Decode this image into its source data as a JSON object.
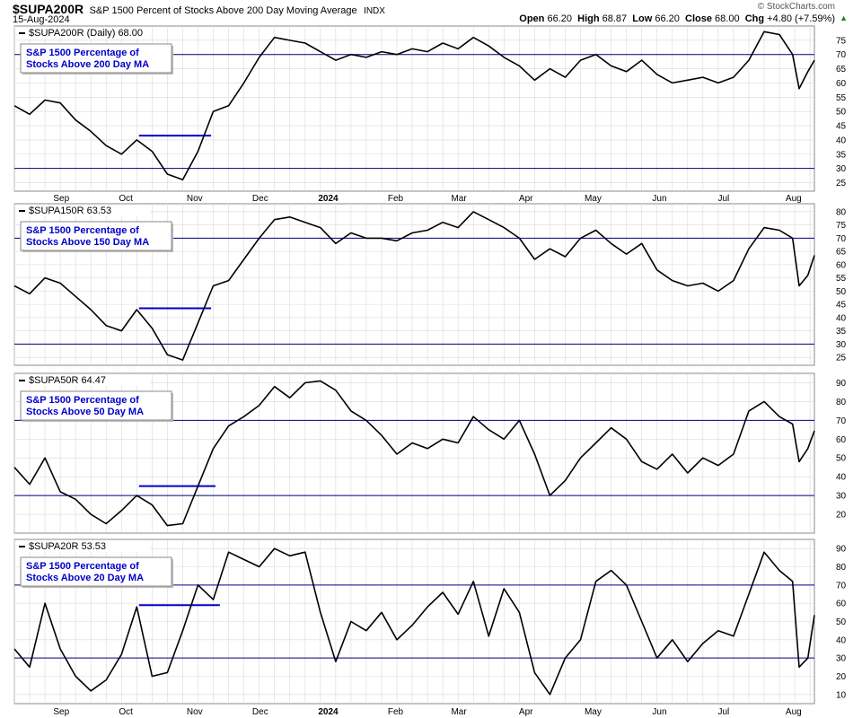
{
  "header": {
    "symbol": "$SUPA200R",
    "description": "S&P 1500 Percent of Stocks Above 200 Day Moving Average",
    "exchange": "INDX",
    "date": "15-Aug-2024",
    "open_label": "Open",
    "open": "66.20",
    "high_label": "High",
    "high": "68.87",
    "low_label": "Low",
    "low": "66.20",
    "close_label": "Close",
    "close": "68.00",
    "chg_label": "Chg",
    "chg": "+4.80 (+7.59%)",
    "up_arrow": "▲",
    "brand": "© StockCharts.com",
    "brand_icon": "copyright-icon"
  },
  "colors": {
    "price_line": "#000000",
    "ref_line": "#00007f",
    "box_text": "#0000cc",
    "grid": "#d9d9d9",
    "trend_line": "#0000cc"
  },
  "x_axis": {
    "labels": [
      "Sep",
      "Oct",
      "Nov",
      "Dec",
      "2024",
      "Feb",
      "Mar",
      "Apr",
      "May",
      "Jun",
      "Jul",
      "Aug"
    ],
    "bold_labels": [
      "2024"
    ],
    "start_date": "2023-08-15",
    "end_date": "2024-08-15"
  },
  "chart_data": [
    {
      "type": "line",
      "title": "$SUPA200R (Daily) 68.00",
      "annotation": [
        "S&P 1500 Percentage of",
        "Stocks Above 200 Day MA"
      ],
      "yticks": [
        25,
        30,
        35,
        40,
        45,
        50,
        55,
        60,
        65,
        70,
        75
      ],
      "ylim": [
        22,
        80
      ],
      "reference_lines": [
        30,
        70
      ],
      "trendline": {
        "y": 41.5,
        "x_start": "2023-10-11",
        "x_end": "2023-11-13"
      },
      "x": [
        "2023-08-15",
        "2023-08-22",
        "2023-08-29",
        "2023-09-05",
        "2023-09-12",
        "2023-09-19",
        "2023-09-26",
        "2023-10-03",
        "2023-10-10",
        "2023-10-17",
        "2023-10-24",
        "2023-10-31",
        "2023-11-07",
        "2023-11-14",
        "2023-11-21",
        "2023-11-28",
        "2023-12-05",
        "2023-12-12",
        "2023-12-19",
        "2023-12-26",
        "2024-01-02",
        "2024-01-09",
        "2024-01-16",
        "2024-01-23",
        "2024-01-30",
        "2024-02-06",
        "2024-02-13",
        "2024-02-20",
        "2024-02-27",
        "2024-03-05",
        "2024-03-12",
        "2024-03-19",
        "2024-03-26",
        "2024-04-02",
        "2024-04-09",
        "2024-04-16",
        "2024-04-23",
        "2024-04-30",
        "2024-05-07",
        "2024-05-14",
        "2024-05-21",
        "2024-05-28",
        "2024-06-04",
        "2024-06-11",
        "2024-06-18",
        "2024-06-25",
        "2024-07-02",
        "2024-07-09",
        "2024-07-16",
        "2024-07-23",
        "2024-07-30",
        "2024-08-05",
        "2024-08-08",
        "2024-08-12",
        "2024-08-15"
      ],
      "values": [
        52,
        49,
        54,
        53,
        47,
        43,
        38,
        35,
        40,
        36,
        28,
        26,
        36,
        50,
        52,
        60,
        69,
        76,
        75,
        74,
        71,
        68,
        70,
        69,
        71,
        70,
        72,
        71,
        74,
        72,
        76,
        73,
        69,
        66,
        61,
        65,
        62,
        68,
        70,
        66,
        64,
        68,
        63,
        60,
        61,
        62,
        60,
        62,
        68,
        78,
        77,
        70,
        58,
        64,
        68
      ]
    },
    {
      "type": "line",
      "title": "$SUPA150R 63.53",
      "annotation": [
        "S&P 1500 Percentage of",
        "Stocks Above 150 Day MA"
      ],
      "yticks": [
        25,
        30,
        35,
        40,
        45,
        50,
        55,
        60,
        65,
        70,
        75,
        80
      ],
      "ylim": [
        22,
        83
      ],
      "reference_lines": [
        30,
        70
      ],
      "trendline": {
        "y": 43.5,
        "x_start": "2023-10-11",
        "x_end": "2023-11-13"
      },
      "x": [
        "2023-08-15",
        "2023-08-22",
        "2023-08-29",
        "2023-09-05",
        "2023-09-12",
        "2023-09-19",
        "2023-09-26",
        "2023-10-03",
        "2023-10-10",
        "2023-10-17",
        "2023-10-24",
        "2023-10-31",
        "2023-11-07",
        "2023-11-14",
        "2023-11-21",
        "2023-11-28",
        "2023-12-05",
        "2023-12-12",
        "2023-12-19",
        "2023-12-26",
        "2024-01-02",
        "2024-01-09",
        "2024-01-16",
        "2024-01-23",
        "2024-01-30",
        "2024-02-06",
        "2024-02-13",
        "2024-02-20",
        "2024-02-27",
        "2024-03-05",
        "2024-03-12",
        "2024-03-19",
        "2024-03-26",
        "2024-04-02",
        "2024-04-09",
        "2024-04-16",
        "2024-04-23",
        "2024-04-30",
        "2024-05-07",
        "2024-05-14",
        "2024-05-21",
        "2024-05-28",
        "2024-06-04",
        "2024-06-11",
        "2024-06-18",
        "2024-06-25",
        "2024-07-02",
        "2024-07-09",
        "2024-07-16",
        "2024-07-23",
        "2024-07-30",
        "2024-08-05",
        "2024-08-08",
        "2024-08-12",
        "2024-08-15"
      ],
      "values": [
        52,
        49,
        55,
        53,
        48,
        43,
        37,
        35,
        43,
        36,
        26,
        24,
        38,
        52,
        54,
        62,
        70,
        77,
        78,
        76,
        74,
        68,
        72,
        70,
        70,
        69,
        72,
        73,
        76,
        74,
        80,
        77,
        74,
        70,
        62,
        66,
        63,
        70,
        73,
        68,
        64,
        68,
        58,
        54,
        52,
        53,
        50,
        54,
        66,
        74,
        73,
        70,
        52,
        56,
        63.5
      ]
    },
    {
      "type": "line",
      "title": "$SUPA50R 64.47",
      "annotation": [
        "S&P 1500 Percentage of",
        "Stocks Above 50 Day MA"
      ],
      "yticks": [
        20,
        30,
        40,
        50,
        60,
        70,
        80,
        90
      ],
      "ylim": [
        10,
        95
      ],
      "reference_lines": [
        30,
        70
      ],
      "trendline": {
        "y": 35,
        "x_start": "2023-10-11",
        "x_end": "2023-11-15"
      },
      "x": [
        "2023-08-15",
        "2023-08-22",
        "2023-08-29",
        "2023-09-05",
        "2023-09-12",
        "2023-09-19",
        "2023-09-26",
        "2023-10-03",
        "2023-10-10",
        "2023-10-17",
        "2023-10-24",
        "2023-10-31",
        "2023-11-07",
        "2023-11-14",
        "2023-11-21",
        "2023-11-28",
        "2023-12-05",
        "2023-12-12",
        "2023-12-19",
        "2023-12-26",
        "2024-01-02",
        "2024-01-09",
        "2024-01-16",
        "2024-01-23",
        "2024-01-30",
        "2024-02-06",
        "2024-02-13",
        "2024-02-20",
        "2024-02-27",
        "2024-03-05",
        "2024-03-12",
        "2024-03-19",
        "2024-03-26",
        "2024-04-02",
        "2024-04-09",
        "2024-04-16",
        "2024-04-23",
        "2024-04-30",
        "2024-05-07",
        "2024-05-14",
        "2024-05-21",
        "2024-05-28",
        "2024-06-04",
        "2024-06-11",
        "2024-06-18",
        "2024-06-25",
        "2024-07-02",
        "2024-07-09",
        "2024-07-16",
        "2024-07-23",
        "2024-07-30",
        "2024-08-05",
        "2024-08-08",
        "2024-08-12",
        "2024-08-15"
      ],
      "values": [
        45,
        36,
        50,
        32,
        28,
        20,
        15,
        22,
        30,
        25,
        14,
        15,
        35,
        55,
        67,
        72,
        78,
        88,
        82,
        90,
        91,
        86,
        75,
        70,
        62,
        52,
        58,
        55,
        60,
        58,
        72,
        65,
        60,
        70,
        52,
        30,
        38,
        50,
        58,
        66,
        60,
        48,
        44,
        52,
        42,
        50,
        46,
        52,
        75,
        80,
        72,
        68,
        48,
        55,
        64.5
      ]
    },
    {
      "type": "line",
      "title": "$SUPA20R 53.53",
      "annotation": [
        "S&P 1500 Percentage of",
        "Stocks Above 20 Day MA"
      ],
      "yticks": [
        10,
        20,
        30,
        40,
        50,
        60,
        70,
        80,
        90
      ],
      "ylim": [
        5,
        95
      ],
      "reference_lines": [
        30,
        70
      ],
      "trendline": {
        "y": 59,
        "x_start": "2023-10-11",
        "x_end": "2023-11-17"
      },
      "x": [
        "2023-08-15",
        "2023-08-22",
        "2023-08-29",
        "2023-09-05",
        "2023-09-12",
        "2023-09-19",
        "2023-09-26",
        "2023-10-03",
        "2023-10-10",
        "2023-10-17",
        "2023-10-24",
        "2023-10-31",
        "2023-11-07",
        "2023-11-14",
        "2023-11-21",
        "2023-11-28",
        "2023-12-05",
        "2023-12-12",
        "2023-12-19",
        "2023-12-26",
        "2024-01-02",
        "2024-01-09",
        "2024-01-16",
        "2024-01-23",
        "2024-01-30",
        "2024-02-06",
        "2024-02-13",
        "2024-02-20",
        "2024-02-27",
        "2024-03-05",
        "2024-03-12",
        "2024-03-19",
        "2024-03-26",
        "2024-04-02",
        "2024-04-09",
        "2024-04-16",
        "2024-04-23",
        "2024-04-30",
        "2024-05-07",
        "2024-05-14",
        "2024-05-21",
        "2024-05-28",
        "2024-06-04",
        "2024-06-11",
        "2024-06-18",
        "2024-06-25",
        "2024-07-02",
        "2024-07-09",
        "2024-07-16",
        "2024-07-23",
        "2024-07-30",
        "2024-08-05",
        "2024-08-08",
        "2024-08-12",
        "2024-08-15"
      ],
      "values": [
        35,
        25,
        60,
        35,
        20,
        12,
        18,
        32,
        58,
        20,
        22,
        45,
        70,
        62,
        88,
        84,
        80,
        90,
        86,
        88,
        55,
        28,
        50,
        45,
        55,
        40,
        48,
        58,
        66,
        54,
        72,
        42,
        68,
        55,
        22,
        10,
        30,
        40,
        72,
        78,
        70,
        50,
        30,
        40,
        28,
        38,
        45,
        42,
        65,
        88,
        78,
        72,
        25,
        30,
        53.5
      ]
    }
  ]
}
